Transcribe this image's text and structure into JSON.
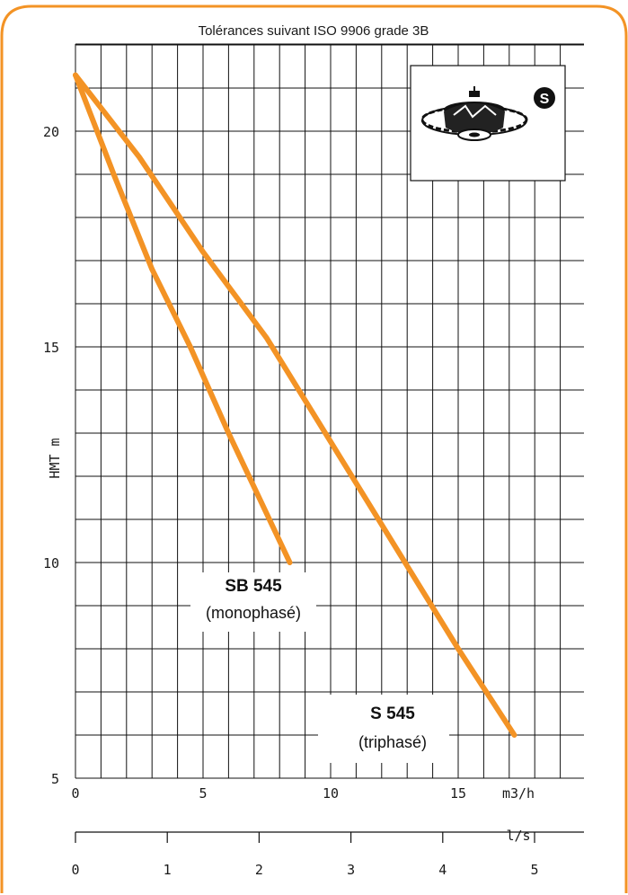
{
  "subtitle": "Tolérances suivant ISO 9906 grade 3B",
  "colors": {
    "curve": "#f39325",
    "frame": "#f39325",
    "grid": "#111111"
  },
  "badge_letter": "S",
  "chart_data": {
    "type": "line",
    "title": "",
    "subtitle": "Tolérances suivant ISO 9906 grade 3B",
    "xlabel": "m3/h",
    "x2label": "l/s",
    "ylabel": "HMT m",
    "xlim": [
      0,
      20
    ],
    "ylim": [
      5,
      22
    ],
    "x_ticks": [
      0,
      5,
      10,
      15
    ],
    "x_tick_labels": [
      "0",
      "5",
      "10",
      "15"
    ],
    "x2_ticks": [
      0,
      1,
      2,
      3,
      4,
      5
    ],
    "x2_tick_labels": [
      "0",
      "1",
      "2",
      "3",
      "4",
      "5"
    ],
    "y_ticks": [
      5,
      10,
      15,
      20
    ],
    "y_tick_labels": [
      "5",
      "10",
      "15",
      "20"
    ],
    "grid": true,
    "series": [
      {
        "name": "S 545",
        "label_line1": "S 545",
        "label_line2": "(triphasé)",
        "x": [
          0,
          2.5,
          5,
          7.5,
          10,
          12.5,
          15,
          17.2
        ],
        "y": [
          21.3,
          19.4,
          17.2,
          15.2,
          12.8,
          10.4,
          8.0,
          6.0
        ]
      },
      {
        "name": "SB 545",
        "label_line1": "SB 545",
        "label_line2": "(monophasé)",
        "x": [
          0,
          1.5,
          3,
          4.5,
          6,
          7.2,
          8.4
        ],
        "y": [
          21.3,
          19.0,
          16.8,
          15.0,
          13.0,
          11.5,
          10.0
        ]
      }
    ]
  }
}
